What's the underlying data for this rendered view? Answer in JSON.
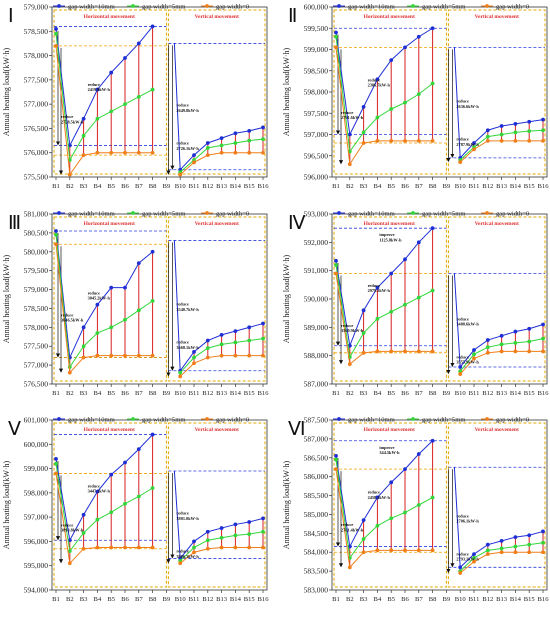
{
  "figure": {
    "legend_labels": [
      "gap width=10mm",
      "gap width=5mm",
      "gap width=0"
    ],
    "colors": {
      "s10": "#1f2fd6",
      "s5": "#33d63a",
      "s0": "#f07f1a",
      "region_border": "#e0a800",
      "drop": "#d62020",
      "ref_blue": "#2b3fe0",
      "ref_orange": "#f0a000",
      "region_title": "#e03030",
      "arrow": "#111111"
    },
    "ylabel": "Annual heating load(kW·h)",
    "region_titles": [
      "Horizontal movement",
      "Vertical movement"
    ]
  },
  "chart_data": [
    {
      "type": "line",
      "panel_label": "Ⅰ",
      "categories": [
        "B1",
        "B2",
        "B3",
        "B4",
        "B5",
        "B6",
        "B7",
        "B8",
        "B9",
        "B10",
        "B11",
        "B12",
        "B13",
        "B14",
        "B15",
        "B16"
      ],
      "ylim": [
        575500,
        579000
      ],
      "yticks": [
        "575,500",
        "576,000",
        "576,500",
        "577,000",
        "577,500",
        "578,000",
        "578,500",
        "579,000"
      ],
      "ytick_values": [
        575500,
        576000,
        576500,
        577000,
        577500,
        578000,
        578500,
        579000
      ],
      "series": [
        {
          "name": "gap width=10mm",
          "values": [
            578550,
            576150,
            576700,
            577300,
            577650,
            577950,
            578250,
            578600,
            null,
            575650,
            575950,
            576200,
            576300,
            576400,
            576450,
            576520
          ]
        },
        {
          "name": "gap width=5mm",
          "values": [
            578450,
            575850,
            576350,
            576700,
            576850,
            577000,
            577150,
            577300,
            null,
            575600,
            575850,
            576100,
            576150,
            576200,
            576250,
            576280
          ]
        },
        {
          "name": "gap width=0",
          "values": [
            578200,
            575550,
            575950,
            576000,
            576000,
            576000,
            576000,
            576000,
            null,
            575550,
            575800,
            575950,
            576000,
            576000,
            576000,
            576000
          ]
        }
      ],
      "v_start": [
        578250,
        578250
      ],
      "annotations": [
        {
          "text": "reduce\n2419.9kW·h",
          "region": "h"
        },
        {
          "text": "reduce\n2728.5kW·h",
          "region": "h2"
        },
        {
          "text": "reduce\n2649.8kW·h",
          "region": "v"
        },
        {
          "text": "reduce\n2726.1kW·h",
          "region": "v2"
        }
      ]
    },
    {
      "type": "line",
      "panel_label": "Ⅱ",
      "categories": [
        "B1",
        "B2",
        "B3",
        "B4",
        "B5",
        "B6",
        "B7",
        "B8",
        "B9",
        "B10",
        "B11",
        "B12",
        "B13",
        "B14",
        "B15",
        "B16"
      ],
      "ylim": [
        596000,
        600000
      ],
      "yticks": [
        "596,000",
        "596,500",
        "597,000",
        "597,500",
        "598,000",
        "598,500",
        "599,000",
        "599,500",
        "600,000"
      ],
      "ytick_values": [
        596000,
        596500,
        597000,
        597500,
        598000,
        598500,
        599000,
        599500,
        600000
      ],
      "series": [
        {
          "name": "gap width=10mm",
          "values": [
            599400,
            597000,
            597650,
            598300,
            598750,
            599050,
            599300,
            599500,
            null,
            596450,
            596800,
            597100,
            597200,
            597250,
            597300,
            597350
          ]
        },
        {
          "name": "gap width=5mm",
          "values": [
            599300,
            596600,
            597050,
            597400,
            597600,
            597750,
            597950,
            598200,
            null,
            596400,
            596700,
            596950,
            597000,
            597050,
            597080,
            597100
          ]
        },
        {
          "name": "gap width=0",
          "values": [
            599050,
            596300,
            596800,
            596850,
            596850,
            596850,
            596850,
            596850,
            null,
            596350,
            596650,
            596850,
            596850,
            596850,
            596850,
            596850
          ]
        }
      ],
      "v_start": [
        599050,
        599050
      ],
      "annotations": [
        {
          "text": "reduce\n2386.7kW·h",
          "region": "h"
        },
        {
          "text": "reduce\n2791.6kW·h",
          "region": "h2"
        },
        {
          "text": "reduce\n2636.6kW·h",
          "region": "v"
        },
        {
          "text": "reduce\n2787.9kW·h",
          "region": "v2"
        }
      ]
    },
    {
      "type": "line",
      "panel_label": "Ⅲ",
      "categories": [
        "B1",
        "B2",
        "B3",
        "B4",
        "B5",
        "B6",
        "B7",
        "B8",
        "B9",
        "B10",
        "B11",
        "B12",
        "B13",
        "B14",
        "B15",
        "B16"
      ],
      "ylim": [
        576500,
        581000
      ],
      "yticks": [
        "576,500",
        "577,000",
        "577,500",
        "578,000",
        "578,500",
        "579,000",
        "579,500",
        "580,000",
        "580,500",
        "581,000"
      ],
      "ytick_values": [
        576500,
        577000,
        577500,
        578000,
        578500,
        579000,
        579500,
        580000,
        580500,
        581000
      ],
      "series": [
        {
          "name": "gap width=10mm",
          "values": [
            580550,
            577200,
            578000,
            578600,
            579050,
            579050,
            579700,
            580000,
            null,
            576850,
            577350,
            577650,
            577800,
            577900,
            578000,
            578100
          ]
        },
        {
          "name": "gap width=5mm",
          "values": [
            580450,
            576950,
            577500,
            577850,
            578000,
            578200,
            578450,
            578700,
            null,
            576800,
            577200,
            577450,
            577550,
            577600,
            577650,
            577700
          ]
        },
        {
          "name": "gap width=0",
          "values": [
            580200,
            576800,
            577200,
            577250,
            577250,
            577250,
            577250,
            577250,
            null,
            576700,
            577050,
            577200,
            577250,
            577250,
            577250,
            577250
          ]
        }
      ],
      "v_start": [
        580300,
        580300
      ],
      "annotations": [
        {
          "text": "reduce\n3045.2kW·h",
          "region": "h"
        },
        {
          "text": "reduce\n3646.5kW·h",
          "region": "h2"
        },
        {
          "text": "reduce\n3540.7kW·h",
          "region": "v"
        },
        {
          "text": "reduce\n3668.1kW·h",
          "region": "v2"
        }
      ]
    },
    {
      "type": "line",
      "panel_label": "Ⅳ",
      "categories": [
        "B1",
        "B2",
        "B3",
        "B4",
        "B5",
        "B6",
        "B7",
        "B8",
        "B9",
        "B10",
        "B11",
        "B12",
        "B13",
        "B14",
        "B15",
        "B16"
      ],
      "ylim": [
        587000,
        593000
      ],
      "yticks": [
        "587,000",
        "588,000",
        "589,000",
        "590,000",
        "591,000",
        "592,000",
        "593,000"
      ],
      "ytick_values": [
        587000,
        588000,
        589000,
        590000,
        591000,
        592000,
        593000
      ],
      "series": [
        {
          "name": "gap width=10mm",
          "values": [
            591350,
            588350,
            589600,
            590400,
            590900,
            591400,
            592000,
            592500,
            null,
            587600,
            588200,
            588550,
            588700,
            588850,
            588950,
            589100
          ]
        },
        {
          "name": "gap width=5mm",
          "values": [
            591200,
            587950,
            588800,
            589300,
            589550,
            589800,
            590050,
            590300,
            null,
            587450,
            588050,
            588300,
            588400,
            588450,
            588500,
            588600
          ]
        },
        {
          "name": "gap width=0",
          "values": [
            590900,
            587700,
            588100,
            588150,
            588150,
            588150,
            588150,
            588150,
            null,
            587350,
            587900,
            588100,
            588150,
            588150,
            588150,
            588150
          ]
        }
      ],
      "v_start": [
        590900,
        590900
      ],
      "annotations": [
        {
          "text": "improve\n1125.8kW·h",
          "region": "top"
        },
        {
          "text": "reduce\n2979.3kW·h",
          "region": "h"
        },
        {
          "text": "reduce\n3569.9kW·h",
          "region": "h2"
        },
        {
          "text": "reduce\n3408.6kW·h",
          "region": "v"
        },
        {
          "text": "reduce\n3555.9kW·h",
          "region": "v2"
        }
      ]
    },
    {
      "type": "line",
      "panel_label": "Ⅴ",
      "categories": [
        "B1",
        "B2",
        "B3",
        "B4",
        "B5",
        "B6",
        "B7",
        "B8",
        "B9",
        "B10",
        "B11",
        "B12",
        "B13",
        "B14",
        "B15",
        "B16"
      ],
      "ylim": [
        594000,
        601000
      ],
      "yticks": [
        "594,000",
        "595,000",
        "596,000",
        "597,000",
        "598,000",
        "599,000",
        "600,000",
        "601,000"
      ],
      "ytick_values": [
        594000,
        595000,
        596000,
        597000,
        598000,
        599000,
        600000,
        601000
      ],
      "series": [
        {
          "name": "gap width=10mm",
          "values": [
            599400,
            596050,
            597100,
            598050,
            598750,
            599250,
            599800,
            600400,
            null,
            595300,
            596000,
            596400,
            596550,
            596700,
            596800,
            596950
          ]
        },
        {
          "name": "gap width=5mm",
          "values": [
            599200,
            595600,
            596350,
            596900,
            597200,
            597550,
            597850,
            598200,
            null,
            595200,
            595750,
            596050,
            596150,
            596250,
            596300,
            596400
          ]
        },
        {
          "name": "gap width=0",
          "values": [
            598800,
            595100,
            595700,
            595750,
            595750,
            595750,
            595750,
            595750,
            null,
            595100,
            595550,
            595700,
            595750,
            595750,
            595750,
            595750
          ]
        }
      ],
      "v_start": [
        598900,
        598900
      ],
      "annotations": [
        {
          "text": "reduce\n3447.3kW·h",
          "region": "h"
        },
        {
          "text": "reduce\n3893.8kW·h",
          "region": "h2"
        },
        {
          "text": "reduce\n3801.0kW·h",
          "region": "v"
        },
        {
          "text": "reduce\n3906.3kW·h",
          "region": "v2"
        }
      ]
    },
    {
      "type": "line",
      "panel_label": "Ⅵ",
      "categories": [
        "B1",
        "B2",
        "B3",
        "B4",
        "B5",
        "B6",
        "B7",
        "B8",
        "B9",
        "B10",
        "B11",
        "B12",
        "B13",
        "B14",
        "B15",
        "B16"
      ],
      "ylim": [
        583000,
        587500
      ],
      "yticks": [
        "583,000",
        "583,500",
        "584,000",
        "584,500",
        "585,000",
        "585,500",
        "586,000",
        "586,500",
        "587,000",
        "587,500"
      ],
      "ytick_values": [
        583000,
        583500,
        584000,
        584500,
        585000,
        585500,
        586000,
        586500,
        587000,
        587500
      ],
      "series": [
        {
          "name": "gap width=10mm",
          "values": [
            586550,
            584150,
            584850,
            585450,
            585850,
            586200,
            586600,
            586950,
            null,
            583600,
            583950,
            584200,
            584300,
            584400,
            584450,
            584550
          ]
        },
        {
          "name": "gap width=5mm",
          "values": [
            586450,
            583850,
            584350,
            584700,
            584900,
            585050,
            585250,
            585450,
            null,
            583500,
            583850,
            584050,
            584100,
            584150,
            584200,
            584250
          ]
        },
        {
          "name": "gap width=0",
          "values": [
            586200,
            583600,
            584000,
            584050,
            584050,
            584050,
            584050,
            584050,
            null,
            583450,
            583750,
            583950,
            584000,
            584000,
            584000,
            584000
          ]
        }
      ],
      "v_start": [
        586250,
        586250
      ],
      "annotations": [
        {
          "text": "improve\n344.5kW·h",
          "region": "top"
        },
        {
          "text": "reduce\n2458.7kW·h",
          "region": "h"
        },
        {
          "text": "reduce\n2761.4kW·h",
          "region": "h2"
        },
        {
          "text": "reduce\n2706.1kW·h",
          "region": "v"
        },
        {
          "text": "reduce\n2793.1kW·h",
          "region": "v2"
        }
      ]
    }
  ]
}
